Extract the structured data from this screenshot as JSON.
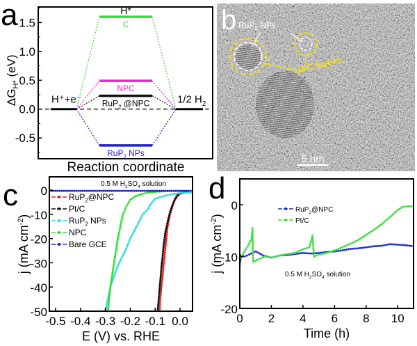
{
  "panel_labels": {
    "a": "a",
    "b": "b",
    "c": "c",
    "d": "d"
  },
  "chart_data": [
    {
      "id": "a",
      "type": "line",
      "subtype": "free-energy-diagram",
      "xlabel": "Reaction coordinate",
      "ylabel": "ΔG",
      "ylabel_sub": "H*",
      "ylabel_unit": " (eV)",
      "ylim": [
        -0.86,
        1.77
      ],
      "yticks": [
        -0.5,
        0.0,
        0.5,
        1.0,
        1.5
      ],
      "ytick_labels": [
        "-0.5",
        "0.0",
        "0.5",
        "1.0",
        "1.5"
      ],
      "states": {
        "initial": "H⁺+e⁻",
        "intermediate": "H*",
        "final": "1/2 H₂"
      },
      "initial_label": {
        "main": "H",
        "sup1": "+",
        "mid": "+e",
        "sup2": "-"
      },
      "final_label": {
        "main": "1/2 H",
        "sub": "2"
      },
      "intermediate_label": "H*",
      "baseline": 0.0,
      "series": [
        {
          "name": "C",
          "value": 1.6,
          "color": "#33dd33",
          "label": "C"
        },
        {
          "name": "NPC",
          "value": 0.49,
          "color": "#ee22dd",
          "label": "NPC"
        },
        {
          "name": "RuP2@NPC",
          "value": 0.23,
          "color": "#111111",
          "label_main": "RuP",
          "label_sub": "2",
          "label_rest": " @NPC"
        },
        {
          "name": "RuP2 NPs",
          "value": -0.63,
          "color": "#2222cc",
          "label_main": "RuP",
          "label_sub": "2",
          "label_rest": " NPs"
        }
      ]
    },
    {
      "id": "c",
      "type": "line",
      "xlabel": "E (V) vs. RHE",
      "ylabel_main": "j (mA cm",
      "ylabel_sup": "-2",
      "ylabel_end": ")",
      "xlim": [
        -0.525,
        0.05
      ],
      "ylim": [
        -50,
        5.5
      ],
      "xticks": [
        -0.5,
        -0.4,
        -0.3,
        -0.2,
        -0.1,
        0.0
      ],
      "xtick_labels": [
        "-0.5",
        "-0.4",
        "-0.3",
        "-0.2",
        "-0.1",
        "0.0"
      ],
      "yticks": [
        -50,
        -40,
        -30,
        -20,
        -10,
        0
      ],
      "ytick_labels": [
        "-50",
        "-40",
        "-30",
        "-20",
        "-10",
        "0"
      ],
      "annotation": {
        "pre": "0.5 M H",
        "sub1": "2",
        "mid": "SO",
        "sub2": "4",
        "post": " solution"
      },
      "legend_position": "top-left",
      "series": [
        {
          "name": "RuP2@NPC",
          "label_main": "RuP",
          "label_sub": "2",
          "label_rest": "@NPC",
          "color": "#ee2222",
          "x": [
            0.03,
            0.0,
            -0.01,
            -0.02,
            -0.03,
            -0.04,
            -0.05,
            -0.055,
            -0.06,
            -0.065,
            -0.07,
            -0.075,
            -0.08,
            -0.082
          ],
          "y": [
            -0.8,
            -1.5,
            -2.5,
            -4,
            -6.5,
            -10,
            -15,
            -20,
            -25,
            -30,
            -35,
            -40,
            -45,
            -50
          ]
        },
        {
          "name": "Pt/C",
          "label_main": "Pt/C",
          "color": "#111111",
          "x": [
            0.03,
            0.0,
            -0.01,
            -0.02,
            -0.03,
            -0.04,
            -0.05,
            -0.06,
            -0.065,
            -0.07,
            -0.075,
            -0.08,
            -0.085,
            -0.09
          ],
          "y": [
            -0.8,
            -1.3,
            -2,
            -3.5,
            -6,
            -9,
            -13,
            -18,
            -22,
            -27,
            -32,
            -38,
            -44,
            -50
          ]
        },
        {
          "name": "RuP2 NPs",
          "label_main": "RuP",
          "label_sub": "2",
          "label_rest": " NPs",
          "color": "#33dddd",
          "x": [
            0.05,
            0.0,
            -0.05,
            -0.1,
            -0.12,
            -0.13,
            -0.15,
            -0.17,
            -0.2,
            -0.22,
            -0.245,
            -0.26,
            -0.28,
            -0.3
          ],
          "y": [
            -1,
            -1.2,
            -2,
            -3.5,
            -6,
            -8,
            -10,
            -14,
            -20,
            -25,
            -30,
            -34,
            -40,
            -50
          ]
        },
        {
          "name": "NPC",
          "label_main": "NPC",
          "color": "#33dd33",
          "x": [
            0.05,
            -0.05,
            -0.1,
            -0.13,
            -0.15,
            -0.18,
            -0.2,
            -0.215,
            -0.23,
            -0.24,
            -0.25,
            -0.265,
            -0.28,
            -0.29
          ],
          "y": [
            -0.3,
            -0.4,
            -0.7,
            -1,
            -1.5,
            -2.5,
            -4,
            -6.5,
            -10,
            -15,
            -20,
            -30,
            -40,
            -50
          ]
        },
        {
          "name": "Bare GCE",
          "label_main": "Bare GCE",
          "color": "#2222cc",
          "x": [
            -0.525,
            -0.4,
            -0.3,
            -0.2,
            -0.1,
            0.0,
            0.05
          ],
          "y": [
            -0.3,
            -0.3,
            -0.3,
            -0.3,
            -0.3,
            -0.3,
            -0.3
          ]
        }
      ]
    },
    {
      "id": "d",
      "type": "line",
      "xlabel": "Time (h)",
      "ylabel_main": "j (mA cm",
      "ylabel_sup": "-2",
      "ylabel_end": ")",
      "xlim": [
        0,
        11
      ],
      "ylim": [
        -20,
        5
      ],
      "xticks": [
        0,
        2,
        4,
        6,
        8,
        10
      ],
      "xtick_labels": [
        "0",
        "2",
        "4",
        "6",
        "8",
        "10"
      ],
      "yticks": [
        -20,
        -10,
        0
      ],
      "ytick_labels": [
        "-20",
        "-10",
        "0"
      ],
      "annotation": {
        "pre": "0.5 M H",
        "sub1": "2",
        "mid": "SO",
        "sub2": "4",
        "post": " solution"
      },
      "legend_position": "top-center",
      "series": [
        {
          "name": "RuP2@NPC",
          "label_main": "RuP",
          "label_sub": "2",
          "label_rest": "@NPC",
          "color": "#2233cc",
          "x": [
            0,
            0.1,
            0.3,
            0.6,
            1.0,
            1.5,
            2.0,
            2.5,
            3.0,
            3.5,
            4.0,
            4.5,
            5.0,
            5.5,
            6.0,
            6.5,
            7.0,
            7.5,
            8.0,
            8.5,
            9.0,
            9.5,
            10.0,
            10.5,
            11.0
          ],
          "y": [
            -11.5,
            -9.8,
            -10,
            -9.6,
            -9,
            -9.8,
            -10.2,
            -9.8,
            -9.7,
            -9.5,
            -9.3,
            -9.4,
            -9.3,
            -9.1,
            -9.0,
            -8.8,
            -8.5,
            -8.4,
            -8.2,
            -8.0,
            -7.9,
            -7.6,
            -7.7,
            -7.8,
            -8.0
          ]
        },
        {
          "name": "Pt/C",
          "label_main": "Pt/C",
          "color": "#44dd44",
          "x": [
            0,
            0.2,
            0.5,
            0.75,
            0.8,
            0.85,
            1.2,
            1.6,
            2.0,
            2.5,
            3.0,
            3.5,
            4.0,
            4.4,
            4.6,
            4.7,
            5.0,
            5.5,
            6.0,
            6.5,
            7.0,
            7.5,
            8.0,
            8.5,
            9.0,
            9.5,
            10.0,
            10.3,
            10.7,
            11.0
          ],
          "y": [
            -10.5,
            -9.5,
            -8,
            -6.5,
            -4.5,
            -11,
            -10.5,
            -10,
            -10.2,
            -9.8,
            -9.5,
            -9.3,
            -8.6,
            -8.2,
            -6,
            -10,
            -9.6,
            -9.3,
            -8.8,
            -8.2,
            -7.5,
            -6.8,
            -5.8,
            -4.8,
            -3.7,
            -2.4,
            -1,
            -0.4,
            -0.3,
            -0.3
          ]
        }
      ]
    }
  ],
  "tem_image": {
    "label_nps": {
      "main": "RuP",
      "sub": "2",
      "rest": " NPs"
    },
    "label_layers": "NPC layers",
    "scale_bar": "5 nm",
    "annotation_color": "#f0e020",
    "circle_color_inner": "#ffffff"
  }
}
